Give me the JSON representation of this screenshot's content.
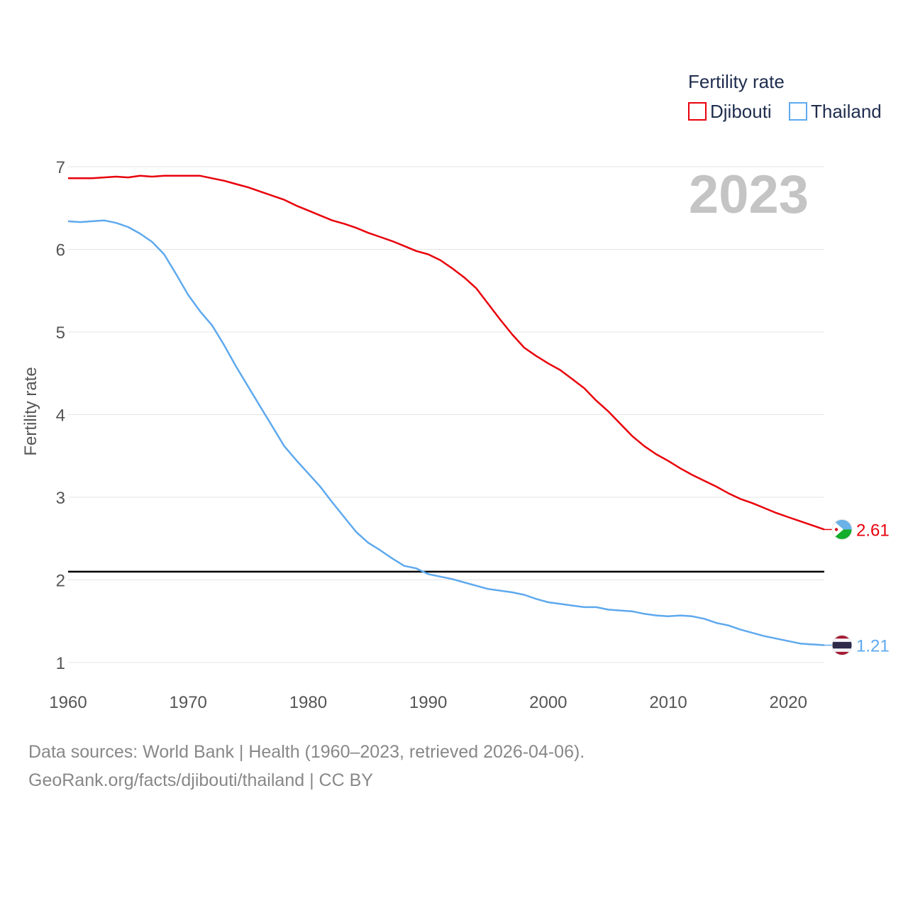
{
  "chart_data": {
    "type": "line",
    "title": "Fertility rate",
    "ylabel": "Fertility rate",
    "xlabel": "",
    "current_year_label": "2023",
    "xlim": [
      1960,
      2023
    ],
    "ylim": [
      1,
      7
    ],
    "yticks": [
      1,
      2,
      3,
      4,
      5,
      6,
      7
    ],
    "xticks": [
      1960,
      1970,
      1980,
      1990,
      2000,
      2010,
      2020
    ],
    "reference_line": {
      "y": 2.1,
      "color": "#000000"
    },
    "x": [
      1960,
      1961,
      1962,
      1963,
      1964,
      1965,
      1966,
      1967,
      1968,
      1969,
      1970,
      1971,
      1972,
      1973,
      1974,
      1975,
      1976,
      1977,
      1978,
      1979,
      1980,
      1981,
      1982,
      1983,
      1984,
      1985,
      1986,
      1987,
      1988,
      1989,
      1990,
      1991,
      1992,
      1993,
      1994,
      1995,
      1996,
      1997,
      1998,
      1999,
      2000,
      2001,
      2002,
      2003,
      2004,
      2005,
      2006,
      2007,
      2008,
      2009,
      2010,
      2011,
      2012,
      2013,
      2014,
      2015,
      2016,
      2017,
      2018,
      2019,
      2020,
      2021,
      2022,
      2023
    ],
    "series": [
      {
        "name": "Djibouti",
        "color": "#e8000b",
        "flag": "djibouti-flag",
        "end_label": "2.61",
        "values": [
          6.86,
          6.86,
          6.86,
          6.87,
          6.88,
          6.87,
          6.89,
          6.88,
          6.89,
          6.89,
          6.89,
          6.89,
          6.86,
          6.83,
          6.79,
          6.75,
          6.7,
          6.65,
          6.6,
          6.53,
          6.47,
          6.41,
          6.35,
          6.31,
          6.26,
          6.2,
          6.15,
          6.1,
          6.04,
          5.98,
          5.94,
          5.87,
          5.77,
          5.66,
          5.53,
          5.34,
          5.15,
          4.97,
          4.81,
          4.71,
          4.62,
          4.54,
          4.43,
          4.32,
          4.17,
          4.04,
          3.89,
          3.74,
          3.62,
          3.52,
          3.44,
          3.35,
          3.27,
          3.2,
          3.13,
          3.05,
          2.98,
          2.93,
          2.87,
          2.81,
          2.76,
          2.71,
          2.66,
          2.61
        ]
      },
      {
        "name": "Thailand",
        "color": "#5ea9ee",
        "flag": "thailand-flag",
        "end_label": "1.21",
        "values": [
          6.34,
          6.33,
          6.34,
          6.35,
          6.32,
          6.27,
          6.19,
          6.09,
          5.94,
          5.7,
          5.45,
          5.25,
          5.08,
          4.84,
          4.58,
          4.34,
          4.1,
          3.86,
          3.62,
          3.45,
          3.29,
          3.13,
          2.94,
          2.76,
          2.58,
          2.45,
          2.36,
          2.26,
          2.17,
          2.14,
          2.07,
          2.04,
          2.01,
          1.97,
          1.93,
          1.89,
          1.87,
          1.85,
          1.82,
          1.77,
          1.73,
          1.71,
          1.69,
          1.67,
          1.67,
          1.64,
          1.63,
          1.62,
          1.59,
          1.57,
          1.56,
          1.57,
          1.56,
          1.53,
          1.48,
          1.45,
          1.4,
          1.36,
          1.32,
          1.29,
          1.26,
          1.23,
          1.22,
          1.21
        ]
      }
    ],
    "legend_position": "top-right"
  },
  "source": {
    "line1": "Data sources: World Bank | Health (1960–2023, retrieved 2026-04-06).",
    "line2": "GeoRank.org/facts/djibouti/thailand | CC BY"
  }
}
